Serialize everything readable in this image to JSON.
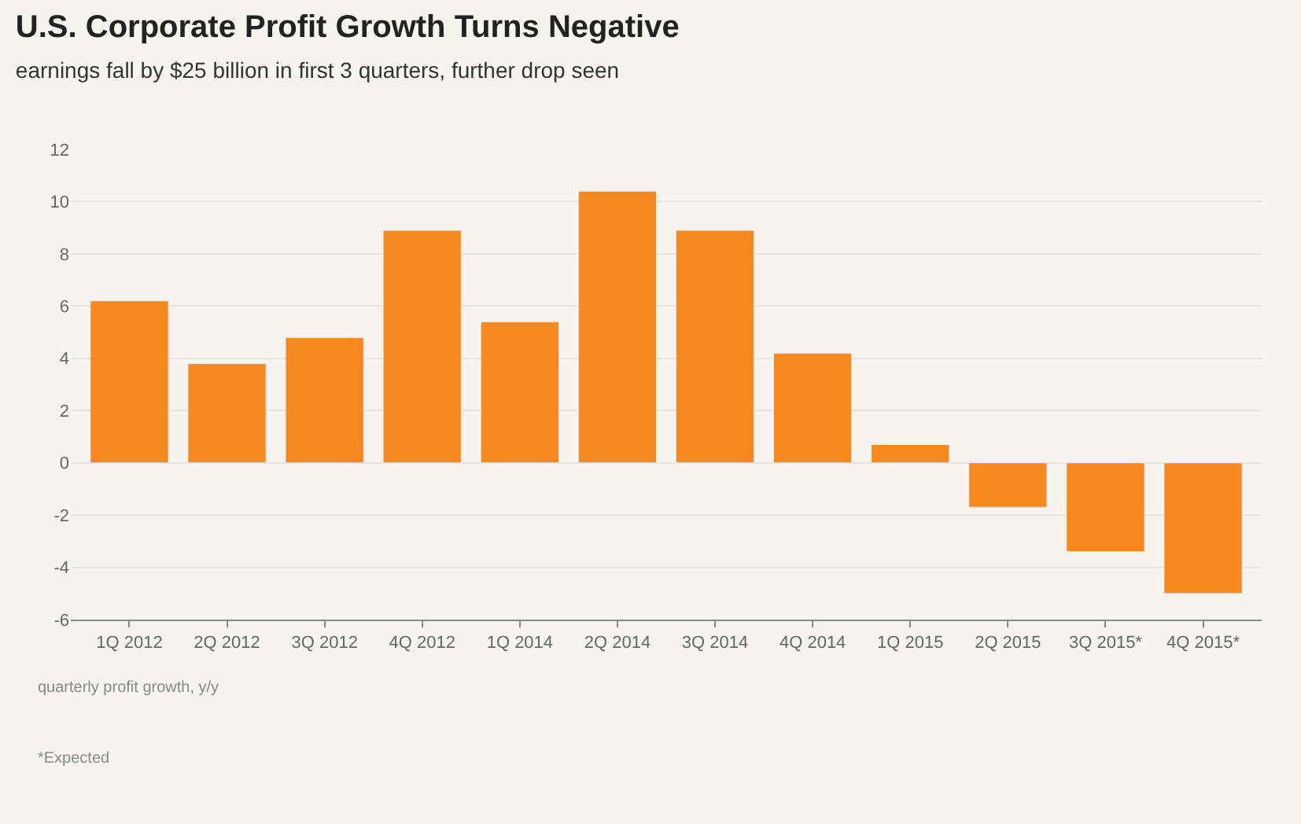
{
  "chart_data": {
    "type": "bar",
    "title": "U.S. Corporate Profit Growth Turns Negative",
    "subtitle": "earnings fall by $25 billion in first 3 quarters, further drop seen",
    "categories": [
      "1Q 2012",
      "2Q 2012",
      "3Q 2012",
      "4Q 2012",
      "1Q 2014",
      "2Q 2014",
      "3Q 2014",
      "4Q 2014",
      "1Q 2015",
      "2Q 2015",
      "3Q 2015*",
      "4Q 2015*"
    ],
    "values": [
      6.2,
      3.8,
      4.8,
      8.9,
      5.4,
      10.4,
      8.9,
      4.2,
      0.7,
      -1.7,
      -3.4,
      -5.0
    ],
    "color": "#f7891f",
    "ylim": [
      -6,
      12
    ],
    "yticks": [
      -6,
      -4,
      -2,
      0,
      2,
      4,
      6,
      8,
      10,
      12
    ],
    "grid": "y",
    "annotations": [
      "quarterly profit growth, y/y",
      "*Expected"
    ]
  }
}
